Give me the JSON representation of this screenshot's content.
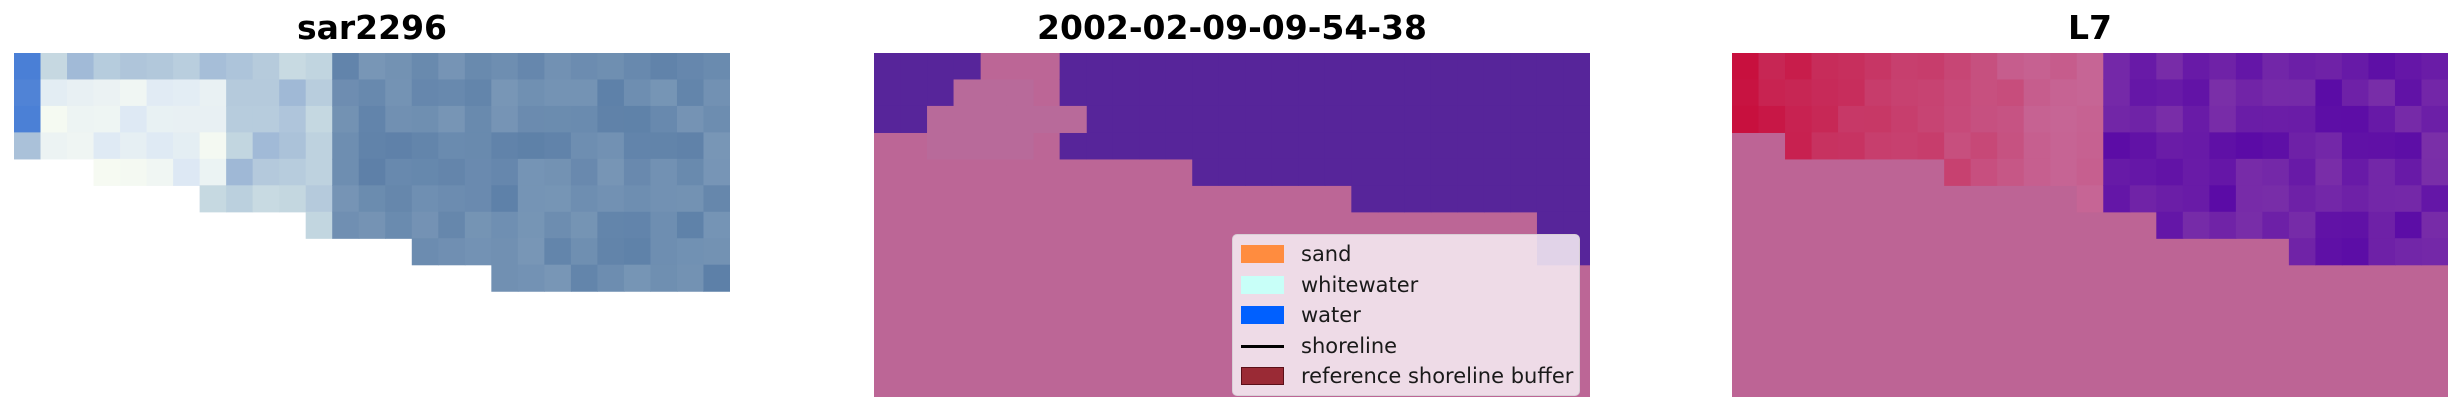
{
  "panels": [
    {
      "title": "sar2296"
    },
    {
      "title": "2002-02-09-09-54-38"
    },
    {
      "title": "L7"
    }
  ],
  "legend": {
    "items": [
      {
        "label": "sand",
        "color": "#ff8c3f",
        "kind": "box"
      },
      {
        "label": "whitewater",
        "color": "#c8fff8",
        "kind": "box"
      },
      {
        "label": "water",
        "color": "#0060ff",
        "kind": "box"
      },
      {
        "label": "shoreline",
        "color": "#000000",
        "kind": "line"
      },
      {
        "label": "reference shoreline buffer",
        "color": "#9a2a35",
        "kind": "box"
      }
    ]
  },
  "colors": {
    "classified_water": "#57259a",
    "classified_sand": "#bc6696",
    "l7_sand": "#bd6495",
    "l7_water": "#6a18a8",
    "l7_red": "#c8103e"
  }
}
